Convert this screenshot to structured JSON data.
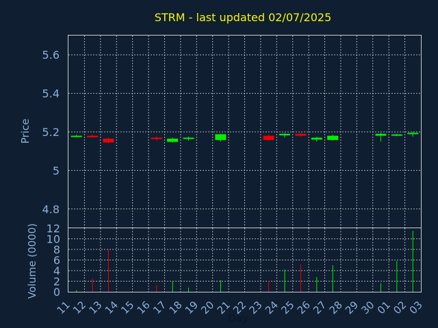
{
  "chart_data": {
    "type": "candlestick",
    "title": "STRM - last updated 02/07/2025",
    "xlabel": "Day",
    "price_ylabel": "Price",
    "volume_ylabel": "Volume (0000)",
    "x_ticks": [
      "11",
      "12",
      "13",
      "14",
      "15",
      "16",
      "17",
      "18",
      "19",
      "20",
      "21",
      "22",
      "23",
      "24",
      "25",
      "26",
      "27",
      "28",
      "29",
      "30",
      "01",
      "02",
      "03"
    ],
    "price_ylim": [
      4.7,
      5.7
    ],
    "price_ticks": [
      4.8,
      5,
      5.2,
      5.4,
      5.6
    ],
    "price_tick_labels": [
      "4.8",
      "5",
      "5.2",
      "5.4",
      "5.6"
    ],
    "volume_ylim": [
      0,
      12
    ],
    "volume_ticks": [
      0,
      2,
      4,
      6,
      8,
      10,
      12
    ],
    "grid": true,
    "colors": {
      "up": "#00f000",
      "down": "#f00000",
      "background": "#0f1e31",
      "plot_border": "#cccccc",
      "grid": "#d0d0d0",
      "title": "#f5f50a",
      "tick_labels": "#8eaed4"
    },
    "candles": [
      {
        "day": "11",
        "open": 5.18,
        "close": 5.18,
        "high": 5.185,
        "low": 5.175,
        "volume": 0.3,
        "dir": "up"
      },
      {
        "day": "12",
        "open": 5.18,
        "close": 5.172,
        "high": 5.185,
        "low": 5.17,
        "volume": 2.5,
        "dir": "down"
      },
      {
        "day": "13",
        "open": 5.165,
        "close": 5.145,
        "high": 5.17,
        "low": 5.14,
        "volume": 8.0,
        "dir": "down"
      },
      {
        "day": "16",
        "open": 5.17,
        "close": 5.162,
        "high": 5.175,
        "low": 5.155,
        "volume": 1.3,
        "dir": "down"
      },
      {
        "day": "17",
        "open": 5.148,
        "close": 5.165,
        "high": 5.17,
        "low": 5.145,
        "volume": 2.0,
        "dir": "up"
      },
      {
        "day": "18",
        "open": 5.165,
        "close": 5.17,
        "high": 5.175,
        "low": 5.155,
        "volume": 0.8,
        "dir": "up"
      },
      {
        "day": "20",
        "open": 5.158,
        "close": 5.188,
        "high": 5.19,
        "low": 5.15,
        "volume": 2.2,
        "dir": "up"
      },
      {
        "day": "23",
        "open": 5.18,
        "close": 5.158,
        "high": 5.185,
        "low": 5.155,
        "volume": 2.1,
        "dir": "down"
      },
      {
        "day": "24",
        "open": 5.182,
        "close": 5.19,
        "high": 5.195,
        "low": 5.17,
        "volume": 4.2,
        "dir": "up"
      },
      {
        "day": "25",
        "open": 5.19,
        "close": 5.18,
        "high": 5.195,
        "low": 5.175,
        "volume": 5.2,
        "dir": "down"
      },
      {
        "day": "26",
        "open": 5.16,
        "close": 5.17,
        "high": 5.175,
        "low": 5.15,
        "volume": 2.8,
        "dir": "up"
      },
      {
        "day": "27",
        "open": 5.158,
        "close": 5.18,
        "high": 5.185,
        "low": 5.155,
        "volume": 5.0,
        "dir": "up"
      },
      {
        "day": "30",
        "open": 5.18,
        "close": 5.19,
        "high": 5.195,
        "low": 5.15,
        "volume": 1.6,
        "dir": "up"
      },
      {
        "day": "01",
        "open": 5.18,
        "close": 5.187,
        "high": 5.19,
        "low": 5.178,
        "volume": 5.8,
        "dir": "up"
      },
      {
        "day": "02",
        "open": 5.19,
        "close": 5.195,
        "high": 5.2,
        "low": 5.175,
        "volume": 11.5,
        "dir": "up"
      }
    ]
  }
}
